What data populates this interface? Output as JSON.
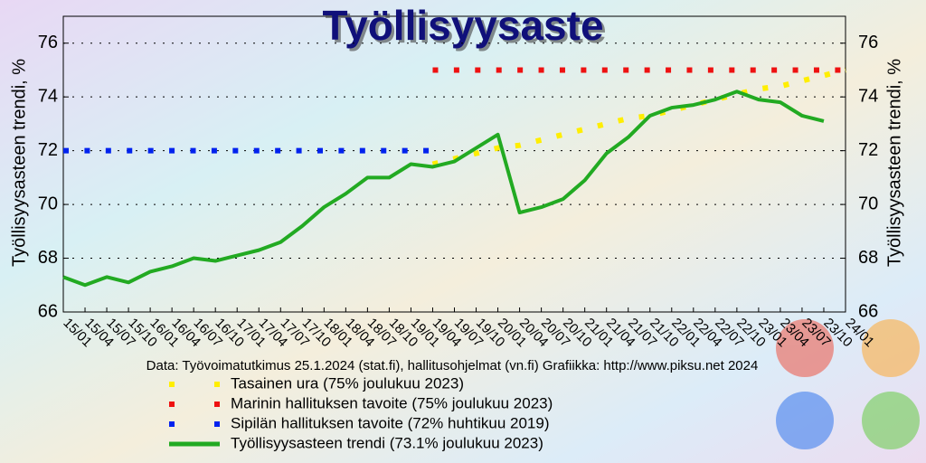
{
  "chart_data": {
    "type": "line",
    "title": "Työllisyysaste",
    "ylabel": "Työllisyysasteen trendi, %",
    "y2label": "Työllisyysasteen trendi, %",
    "footer": "Data: Työvoimatutkimus 25.1.2024 (stat.fi), hallitusohjelmat (vn.fi)  Grafiikka:  http://www.piksu.net    2024",
    "categories": [
      "15/01",
      "15/04",
      "15/07",
      "15/10",
      "16/01",
      "16/04",
      "16/07",
      "16/10",
      "17/01",
      "17/04",
      "17/07",
      "17/10",
      "18/01",
      "18/04",
      "18/07",
      "18/10",
      "19/01",
      "19/04",
      "19/07",
      "19/10",
      "20/01",
      "20/04",
      "20/07",
      "20/10",
      "21/01",
      "21/04",
      "21/07",
      "21/10",
      "22/01",
      "22/04",
      "22/07",
      "22/10",
      "23/01",
      "23/04",
      "23/07",
      "23/10",
      "24/01"
    ],
    "ylim": [
      66,
      77
    ],
    "yticks": [
      66,
      68,
      70,
      72,
      74,
      76
    ],
    "y2lim": [
      66,
      77
    ],
    "y2ticks": [
      66,
      68,
      70,
      72,
      74,
      76
    ],
    "grid": true,
    "series": [
      {
        "name": "Tasainen ura (75% joulukuu 2023)",
        "color": "#ffee00",
        "style": "dotted",
        "values": [
          null,
          null,
          null,
          null,
          null,
          null,
          null,
          null,
          null,
          null,
          null,
          null,
          null,
          null,
          null,
          null,
          null,
          71.5,
          71.7,
          71.9,
          72.1,
          72.2,
          72.4,
          72.6,
          72.8,
          73.0,
          73.2,
          73.3,
          73.5,
          73.7,
          73.9,
          74.1,
          74.3,
          74.4,
          74.6,
          74.8,
          75.0
        ]
      },
      {
        "name": "Marinin hallituksen tavoite (75% joulukuu 2023)",
        "color": "#ee1111",
        "style": "dotted",
        "values": [
          null,
          null,
          null,
          null,
          null,
          null,
          null,
          null,
          null,
          null,
          null,
          null,
          null,
          null,
          null,
          null,
          null,
          75,
          75,
          75,
          75,
          75,
          75,
          75,
          75,
          75,
          75,
          75,
          75,
          75,
          75,
          75,
          75,
          75,
          75,
          75,
          75
        ]
      },
      {
        "name": "Sipilän hallituksen tavoite (72% huhtikuu 2019)",
        "color": "#0022ee",
        "style": "dotted",
        "values": [
          72,
          72,
          72,
          72,
          72,
          72,
          72,
          72,
          72,
          72,
          72,
          72,
          72,
          72,
          72,
          72,
          72,
          72,
          null,
          null,
          null,
          null,
          null,
          null,
          null,
          null,
          null,
          null,
          null,
          null,
          null,
          null,
          null,
          null,
          null,
          null,
          null
        ]
      },
      {
        "name": "Työllisyysasteen trendi (73.1% joulukuu 2023)",
        "color": "#22aa22",
        "style": "solid",
        "values": [
          67.3,
          67.0,
          67.3,
          67.1,
          67.5,
          67.7,
          68.0,
          67.9,
          68.1,
          68.3,
          68.6,
          69.2,
          69.9,
          70.4,
          71.0,
          71.0,
          71.5,
          71.4,
          71.6,
          72.1,
          72.6,
          69.7,
          69.9,
          70.2,
          70.9,
          71.9,
          72.5,
          73.3,
          73.6,
          73.7,
          73.9,
          74.2,
          73.9,
          73.8,
          73.3,
          73.1,
          null
        ]
      }
    ]
  }
}
